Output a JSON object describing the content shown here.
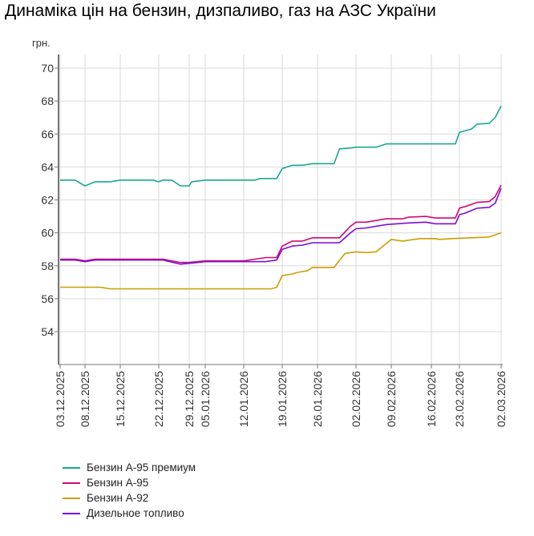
{
  "chart_data": {
    "type": "line",
    "title": "Динаміка цін на бензин, дизпаливо, газ на АЗС України",
    "ylabel": "грн.",
    "xlabel": "",
    "ylim": [
      52,
      70
    ],
    "yticks": [
      54,
      56,
      58,
      60,
      62,
      64,
      66,
      68,
      70
    ],
    "xticks": [
      "03.12.2025",
      "08.12.2025",
      "15.12.2025",
      "22.12.2025",
      "29.12.2025",
      "05.01.2026",
      "12.01.2026",
      "19.01.2026",
      "26.01.2026",
      "02.02.2026",
      "09.02.2026",
      "16.02.2026",
      "23.02.2026",
      "02.03.2026"
    ],
    "grid": true,
    "legend_position": "bottom",
    "series": [
      {
        "name": "Бензин А-95 премиум",
        "color": "#1aa88f",
        "points": [
          [
            "03.12.2025",
            63.2
          ],
          [
            "06.12.2025",
            63.2
          ],
          [
            "08.12.2025",
            62.85
          ],
          [
            "10.12.2025",
            63.1
          ],
          [
            "13.12.2025",
            63.1
          ],
          [
            "15.12.2025",
            63.2
          ],
          [
            "21.12.2025",
            63.2
          ],
          [
            "22.12.2025",
            63.1
          ],
          [
            "23.12.2025",
            63.2
          ],
          [
            "25.12.2025",
            63.2
          ],
          [
            "27.12.2025",
            62.85
          ],
          [
            "29.12.2025",
            62.85
          ],
          [
            "30.12.2025",
            63.1
          ],
          [
            "05.01.2026",
            63.2
          ],
          [
            "14.01.2026",
            63.2
          ],
          [
            "15.01.2026",
            63.3
          ],
          [
            "18.01.2026",
            63.3
          ],
          [
            "19.01.2026",
            63.9
          ],
          [
            "21.01.2026",
            64.1
          ],
          [
            "23.01.2026",
            64.1
          ],
          [
            "25.01.2026",
            64.2
          ],
          [
            "29.01.2026",
            64.2
          ],
          [
            "30.01.2026",
            65.1
          ],
          [
            "01.02.2026",
            65.15
          ],
          [
            "02.02.2026",
            65.2
          ],
          [
            "06.02.2026",
            65.2
          ],
          [
            "08.02.2026",
            65.4
          ],
          [
            "22.02.2026",
            65.4
          ],
          [
            "23.02.2026",
            66.1
          ],
          [
            "24.02.2026",
            66.2
          ],
          [
            "25.02.2026",
            66.3
          ],
          [
            "26.02.2026",
            66.6
          ],
          [
            "28.02.2026",
            66.65
          ],
          [
            "01.03.2026",
            67.0
          ],
          [
            "02.03.2026",
            67.7
          ]
        ]
      },
      {
        "name": "Бензин А-95",
        "color": "#d4086f",
        "points": [
          [
            "03.12.2025",
            58.4
          ],
          [
            "06.12.2025",
            58.4
          ],
          [
            "08.12.2025",
            58.3
          ],
          [
            "10.12.2025",
            58.4
          ],
          [
            "23.12.2025",
            58.4
          ],
          [
            "27.12.2025",
            58.2
          ],
          [
            "29.12.2025",
            58.2
          ],
          [
            "05.01.2026",
            58.3
          ],
          [
            "12.01.2026",
            58.3
          ],
          [
            "14.01.2026",
            58.4
          ],
          [
            "16.01.2026",
            58.5
          ],
          [
            "18.01.2026",
            58.5
          ],
          [
            "19.01.2026",
            59.2
          ],
          [
            "21.01.2026",
            59.5
          ],
          [
            "23.01.2026",
            59.5
          ],
          [
            "25.01.2026",
            59.7
          ],
          [
            "30.01.2026",
            59.7
          ],
          [
            "01.02.2026",
            60.4
          ],
          [
            "02.02.2026",
            60.65
          ],
          [
            "04.02.2026",
            60.65
          ],
          [
            "06.02.2026",
            60.75
          ],
          [
            "08.02.2026",
            60.85
          ],
          [
            "11.02.2026",
            60.85
          ],
          [
            "12.02.2026",
            60.95
          ],
          [
            "15.02.2026",
            61.0
          ],
          [
            "17.02.2026",
            60.9
          ],
          [
            "22.02.2026",
            60.9
          ],
          [
            "23.02.2026",
            61.5
          ],
          [
            "24.02.2026",
            61.6
          ],
          [
            "26.02.2026",
            61.85
          ],
          [
            "28.02.2026",
            61.9
          ],
          [
            "01.03.2026",
            62.2
          ],
          [
            "02.03.2026",
            62.9
          ]
        ]
      },
      {
        "name": "Бензин А-92",
        "color": "#c9a000",
        "points": [
          [
            "03.12.2025",
            56.7
          ],
          [
            "11.12.2025",
            56.7
          ],
          [
            "13.12.2025",
            56.6
          ],
          [
            "17.01.2026",
            56.6
          ],
          [
            "18.01.2026",
            56.7
          ],
          [
            "19.01.2026",
            57.4
          ],
          [
            "21.01.2026",
            57.5
          ],
          [
            "22.01.2026",
            57.6
          ],
          [
            "24.01.2026",
            57.7
          ],
          [
            "25.01.2026",
            57.9
          ],
          [
            "29.01.2026",
            57.9
          ],
          [
            "31.01.2026",
            58.75
          ],
          [
            "02.02.2026",
            58.85
          ],
          [
            "04.02.2026",
            58.8
          ],
          [
            "06.02.2026",
            58.85
          ],
          [
            "09.02.2026",
            59.6
          ],
          [
            "11.02.2026",
            59.5
          ],
          [
            "14.02.2026",
            59.65
          ],
          [
            "17.02.2026",
            59.65
          ],
          [
            "18.02.2026",
            59.6
          ],
          [
            "21.02.2026",
            59.65
          ],
          [
            "25.02.2026",
            59.7
          ],
          [
            "28.02.2026",
            59.75
          ],
          [
            "02.03.2026",
            60.0
          ]
        ]
      },
      {
        "name": "Дизельное топливо",
        "color": "#7a0fd6",
        "points": [
          [
            "03.12.2025",
            58.35
          ],
          [
            "06.12.2025",
            58.35
          ],
          [
            "08.12.2025",
            58.25
          ],
          [
            "10.12.2025",
            58.35
          ],
          [
            "23.12.2025",
            58.35
          ],
          [
            "27.12.2025",
            58.1
          ],
          [
            "29.12.2025",
            58.15
          ],
          [
            "05.01.2026",
            58.25
          ],
          [
            "16.01.2026",
            58.25
          ],
          [
            "18.01.2026",
            58.35
          ],
          [
            "19.01.2026",
            59.0
          ],
          [
            "21.01.2026",
            59.2
          ],
          [
            "23.01.2026",
            59.25
          ],
          [
            "25.01.2026",
            59.4
          ],
          [
            "30.01.2026",
            59.4
          ],
          [
            "01.02.2026",
            60.0
          ],
          [
            "02.02.2026",
            60.25
          ],
          [
            "04.02.2026",
            60.3
          ],
          [
            "06.02.2026",
            60.4
          ],
          [
            "08.02.2026",
            60.5
          ],
          [
            "12.02.2026",
            60.6
          ],
          [
            "15.02.2026",
            60.65
          ],
          [
            "17.02.2026",
            60.55
          ],
          [
            "22.02.2026",
            60.55
          ],
          [
            "23.02.2026",
            61.1
          ],
          [
            "24.02.2026",
            61.2
          ],
          [
            "26.02.2026",
            61.5
          ],
          [
            "28.02.2026",
            61.55
          ],
          [
            "01.03.2026",
            61.8
          ],
          [
            "02.03.2026",
            62.7
          ]
        ]
      }
    ]
  }
}
